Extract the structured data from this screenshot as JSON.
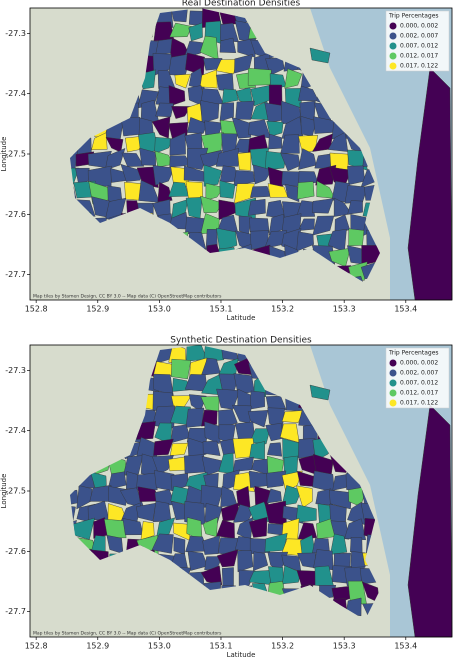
{
  "chart_data": [
    {
      "type": "map",
      "title": "Real Destination Densities",
      "xlabel": "Latitude",
      "ylabel": "Longitude",
      "xlim": [
        152.79,
        153.475
      ],
      "ylim": [
        -27.742,
        -27.258
      ],
      "xticks": [
        152.8,
        152.9,
        {
          "value": 153,
          "label": "153.0"
        },
        153.1,
        153.2,
        153.3,
        153.4
      ],
      "yticks": [
        -27.3,
        -27.4,
        -27.5,
        -27.6,
        -27.7
      ],
      "legend_title": "Trip Percentages",
      "legend": [
        {
          "label": "0.000, 0.002",
          "color": "#440154"
        },
        {
          "label": "0.002, 0.007",
          "color": "#3b528b"
        },
        {
          "label": "0.007, 0.012",
          "color": "#21918c"
        },
        {
          "label": "0.012, 0.017",
          "color": "#5ec962"
        },
        {
          "label": "0.017, 0.122",
          "color": "#fde725"
        }
      ],
      "attribution": "Map tiles by Stamen Design, CC BY 3.0 -- Map data (C) OpenStreetMap contributors"
    },
    {
      "type": "map",
      "title": "Synthetic Destination Densities",
      "xlabel": "Latitude",
      "ylabel": "Longitude",
      "xlim": [
        152.79,
        153.475
      ],
      "ylim": [
        -27.742,
        -27.258
      ],
      "xticks": [
        152.8,
        152.9,
        {
          "value": 153,
          "label": "153.0"
        },
        153.1,
        153.2,
        153.3,
        153.4
      ],
      "yticks": [
        -27.3,
        -27.4,
        -27.5,
        -27.6,
        -27.7
      ],
      "legend_title": "Trip Percentages",
      "legend": [
        {
          "label": "0.000, 0.002",
          "color": "#440154"
        },
        {
          "label": "0.002, 0.007",
          "color": "#3b528b"
        },
        {
          "label": "0.007, 0.012",
          "color": "#21918c"
        },
        {
          "label": "0.012, 0.017",
          "color": "#5ec962"
        },
        {
          "label": "0.017, 0.122",
          "color": "#fde725"
        }
      ],
      "attribution": "Map tiles by Stamen Design, CC BY 3.0 -- Map data (C) OpenStreetMap contributors"
    }
  ]
}
